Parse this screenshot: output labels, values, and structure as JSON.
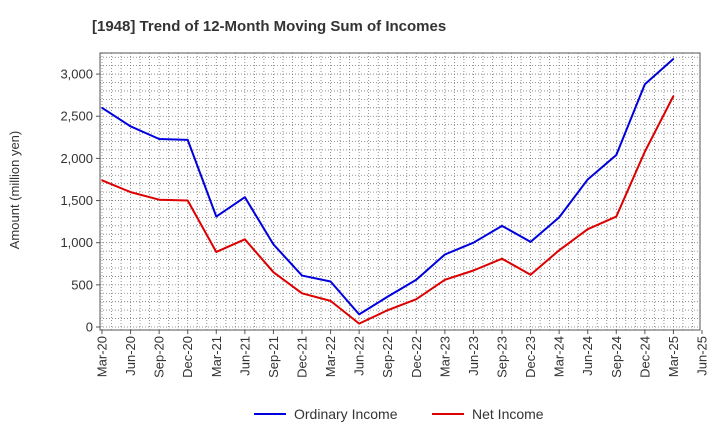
{
  "chart_data": {
    "type": "line",
    "title": "[1948]  Trend of 12-Month Moving Sum of Incomes",
    "xlabel": "",
    "ylabel": "Amount (million yen)",
    "ylim": [
      0,
      3250
    ],
    "yticks": [
      0,
      500,
      1000,
      1500,
      2000,
      2500,
      3000
    ],
    "ytick_labels": [
      "0",
      "500",
      "1,000",
      "1,500",
      "2,000",
      "2,500",
      "3,000"
    ],
    "categories": [
      "Mar-20",
      "Jun-20",
      "Sep-20",
      "Dec-20",
      "Mar-21",
      "Jun-21",
      "Sep-21",
      "Dec-21",
      "Mar-22",
      "Jun-22",
      "Sep-22",
      "Dec-22",
      "Mar-23",
      "Jun-23",
      "Sep-23",
      "Dec-23",
      "Mar-24",
      "Jun-24",
      "Sep-24",
      "Dec-24",
      "Mar-25",
      "Jun-25"
    ],
    "grid": true,
    "legend_position": "bottom-center",
    "series": [
      {
        "name": "Ordinary Income",
        "color": "#0000dd",
        "values": [
          2600,
          2380,
          2230,
          2220,
          1310,
          1540,
          980,
          610,
          540,
          150,
          360,
          560,
          860,
          1000,
          1200,
          1010,
          1300,
          1750,
          2040,
          2880,
          3180,
          null
        ]
      },
      {
        "name": "Net Income",
        "color": "#dd0000",
        "values": [
          1740,
          1600,
          1510,
          1500,
          890,
          1040,
          650,
          400,
          310,
          40,
          200,
          330,
          560,
          670,
          810,
          620,
          910,
          1160,
          1310,
          2080,
          2740,
          null
        ]
      }
    ]
  }
}
